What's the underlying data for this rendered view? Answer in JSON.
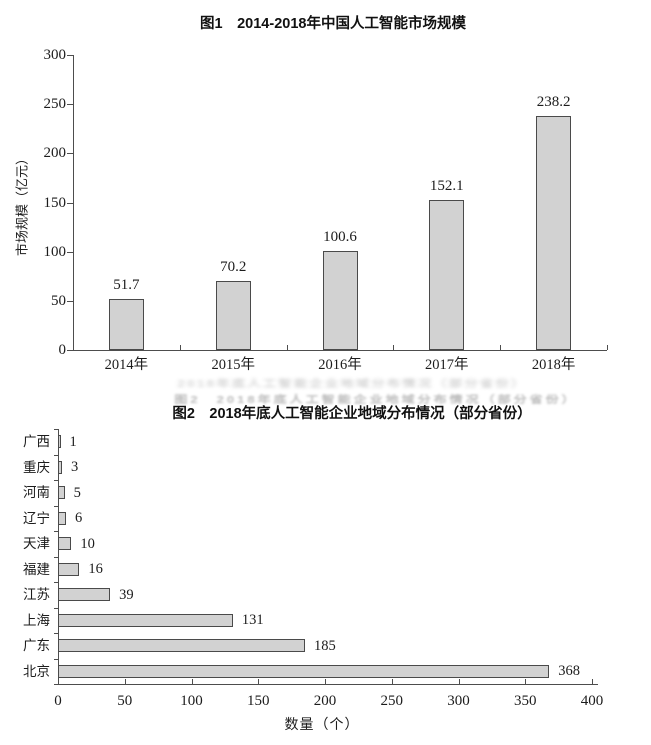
{
  "page": {
    "background": "#ffffff"
  },
  "colors": {
    "bar_fill": "#d2d2d2",
    "bar_border": "#4a4a4a",
    "axis": "#4d4d4d",
    "text": "#1c1c1c"
  },
  "ghost": {
    "line1": "2018年底人工智能企业地域分布情况（部分省份）",
    "line2": "图2　2018年底人工智能企业地域分布情况（部分省份）"
  },
  "chart_data": [
    {
      "type": "bar",
      "orientation": "vertical",
      "title": "图1　2014-2018年中国人工智能市场规模",
      "categories": [
        "2014年",
        "2015年",
        "2016年",
        "2017年",
        "2018年"
      ],
      "values": [
        51.7,
        70.2,
        100.6,
        152.1,
        238.2
      ],
      "data_labels": [
        "51.7",
        "70.2",
        "100.6",
        "152.1",
        "238.2"
      ],
      "xlabel": "",
      "ylabel": "市场规模（亿元）",
      "ylim": [
        0,
        300
      ],
      "yticks": [
        0,
        50,
        100,
        150,
        200,
        250,
        300
      ],
      "grid": false,
      "legend": "none"
    },
    {
      "type": "bar",
      "orientation": "horizontal",
      "title": "图2　2018年底人工智能企业地域分布情况（部分省份）",
      "categories": [
        "广西",
        "重庆",
        "河南",
        "辽宁",
        "天津",
        "福建",
        "江苏",
        "上海",
        "广东",
        "北京"
      ],
      "values": [
        1,
        3,
        5,
        6,
        10,
        16,
        39,
        131,
        185,
        368
      ],
      "data_labels": [
        "1",
        "3",
        "5",
        "6",
        "10",
        "16",
        "39",
        "131",
        "185",
        "368"
      ],
      "xlabel": "数量（个）",
      "ylabel": "",
      "xlim": [
        0,
        400
      ],
      "xticks": [
        0,
        50,
        100,
        150,
        200,
        250,
        300,
        350,
        400
      ],
      "grid": false,
      "legend": "none"
    }
  ]
}
